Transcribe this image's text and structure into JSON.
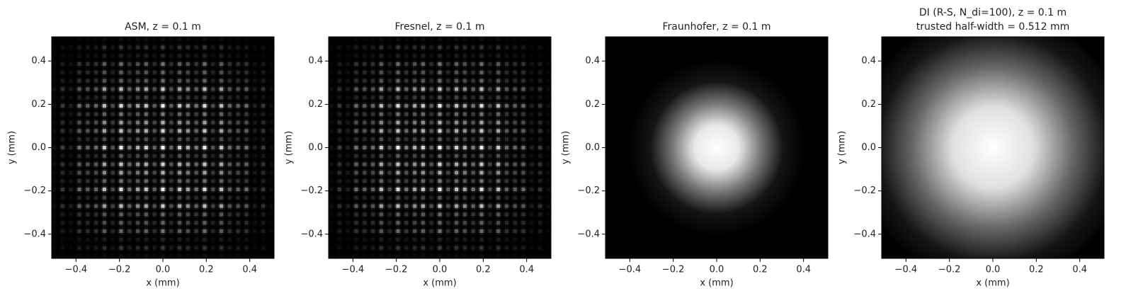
{
  "chart_data": [
    {
      "type": "image",
      "title": "ASM, z = 0.1 m",
      "xlabel": "x (mm)",
      "ylabel": "y (mm)",
      "colormap": "gray",
      "xlim": [
        -0.512,
        0.512
      ],
      "ylim": [
        -0.512,
        0.512
      ],
      "xticks": [
        {
          "value": -0.4,
          "label": "−0.4"
        },
        {
          "value": -0.2,
          "label": "−0.2"
        },
        {
          "value": 0,
          "label": "0.0"
        },
        0.2,
        0.4
      ],
      "yticks": [
        {
          "value": -0.4,
          "label": "−0.4"
        },
        {
          "value": -0.2,
          "label": "−0.2"
        },
        {
          "value": 0,
          "label": "0.0"
        },
        0.2,
        0.4
      ]
    },
    {
      "type": "image",
      "title": "Fresnel, z = 0.1 m",
      "xlabel": "x (mm)",
      "ylabel": "y (mm)",
      "colormap": "gray",
      "xlim": [
        -0.512,
        0.512
      ],
      "ylim": [
        -0.512,
        0.512
      ],
      "xticks": [
        {
          "value": -0.4,
          "label": "−0.4"
        },
        {
          "value": -0.2,
          "label": "−0.2"
        },
        {
          "value": 0,
          "label": "0.0"
        },
        0.2,
        0.4
      ],
      "yticks": [
        {
          "value": -0.4,
          "label": "−0.4"
        },
        {
          "value": -0.2,
          "label": "−0.2"
        },
        {
          "value": 0,
          "label": "0.0"
        },
        0.2,
        0.4
      ]
    },
    {
      "type": "image",
      "title": "Fraunhofer, z = 0.1 m",
      "xlabel": "x (mm)",
      "ylabel": "y (mm)",
      "colormap": "gray",
      "xlim": [
        -0.512,
        0.512
      ],
      "ylim": [
        -0.512,
        0.512
      ],
      "xticks": [
        {
          "value": -0.4,
          "label": "−0.4"
        },
        {
          "value": -0.2,
          "label": "−0.2"
        },
        {
          "value": 0,
          "label": "0.0"
        },
        0.2,
        0.4
      ],
      "yticks": [
        {
          "value": -0.4,
          "label": "−0.4"
        },
        {
          "value": -0.2,
          "label": "−0.2"
        },
        {
          "value": 0,
          "label": "0.0"
        },
        0.2,
        0.4
      ]
    },
    {
      "type": "image",
      "title": "DI (R-S, N_di=100), z = 0.1 m",
      "subtitle": "trusted half-width = 0.512 mm",
      "xlabel": "x (mm)",
      "ylabel": "y (mm)",
      "colormap": "gray",
      "xlim": [
        -0.512,
        0.512
      ],
      "ylim": [
        -0.512,
        0.512
      ],
      "xticks": [
        {
          "value": -0.4,
          "label": "−0.4"
        },
        {
          "value": -0.2,
          "label": "−0.2"
        },
        {
          "value": 0,
          "label": "0.0"
        },
        0.2,
        0.4
      ],
      "yticks": [
        {
          "value": -0.4,
          "label": "−0.4"
        },
        {
          "value": -0.2,
          "label": "−0.2"
        },
        {
          "value": 0,
          "label": "0.0"
        },
        0.2,
        0.4
      ]
    }
  ]
}
